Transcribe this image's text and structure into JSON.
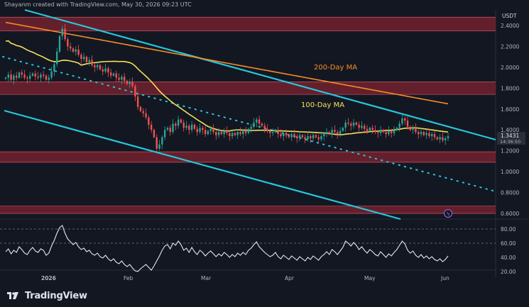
{
  "header": {
    "credit": "Shayanm created with TradingView.com, May 30, 2026 09:23 UTC"
  },
  "logo": {
    "text": "TradingView"
  },
  "colors": {
    "background": "#131722",
    "up_candle": "#26a69a",
    "down_candle": "#ef5350",
    "zone": "#7a2230",
    "channel": "#26c6da",
    "ma100": "#f6e15c",
    "ma200": "#f58c26",
    "rsi": "#e8e8e8",
    "price_tag": "#2a2e39"
  },
  "chart_data": {
    "type": "candlestick",
    "price_axis": {
      "unit": "USDT",
      "ticks": [
        "2.4000",
        "2.2000",
        "2.0000",
        "1.8000",
        "1.6000",
        "1.4000",
        "1.2000",
        "1.0000",
        "0.8000",
        "0.6000"
      ],
      "range": [
        0.6,
        2.5
      ]
    },
    "time_axis": {
      "labels": [
        "2026",
        "Feb",
        "Mar",
        "Apr",
        "May",
        "Jun"
      ]
    },
    "price_label": {
      "value": "1.3431",
      "countdown": "14:36:50"
    },
    "annotations": [
      {
        "text": "200-Day MA",
        "color": "#f58c26"
      },
      {
        "text": "100-Day MA",
        "color": "#f6e15c"
      }
    ],
    "zones": [
      {
        "from": 2.35,
        "to": 2.48
      },
      {
        "from": 1.74,
        "to": 1.86
      },
      {
        "from": 1.09,
        "to": 1.19
      },
      {
        "from": 0.6,
        "to": 0.67
      }
    ],
    "close": [
      1.9,
      1.93,
      1.88,
      1.92,
      1.9,
      1.95,
      1.93,
      1.9,
      1.89,
      1.92,
      1.94,
      1.91,
      1.9,
      1.93,
      1.92,
      1.88,
      1.9,
      1.96,
      2.03,
      2.15,
      2.3,
      2.37,
      2.27,
      2.2,
      2.18,
      2.15,
      2.17,
      2.12,
      2.08,
      2.1,
      2.05,
      2.07,
      2.02,
      2.0,
      2.02,
      1.98,
      1.96,
      1.99,
      1.95,
      1.92,
      1.94,
      1.9,
      1.88,
      1.91,
      1.87,
      1.84,
      1.86,
      1.82,
      1.72,
      1.62,
      1.58,
      1.56,
      1.52,
      1.45,
      1.4,
      1.33,
      1.22,
      1.26,
      1.33,
      1.4,
      1.42,
      1.38,
      1.46,
      1.44,
      1.5,
      1.47,
      1.42,
      1.44,
      1.4,
      1.45,
      1.41,
      1.38,
      1.42,
      1.4,
      1.36,
      1.39,
      1.41,
      1.38,
      1.35,
      1.38,
      1.36,
      1.39,
      1.37,
      1.34,
      1.37,
      1.35,
      1.38,
      1.36,
      1.39,
      1.37,
      1.41,
      1.43,
      1.47,
      1.5,
      1.46,
      1.44,
      1.41,
      1.39,
      1.37,
      1.38,
      1.4,
      1.36,
      1.34,
      1.37,
      1.35,
      1.33,
      1.36,
      1.34,
      1.32,
      1.35,
      1.33,
      1.31,
      1.34,
      1.32,
      1.35,
      1.33,
      1.31,
      1.34,
      1.36,
      1.38,
      1.36,
      1.4,
      1.38,
      1.36,
      1.39,
      1.42,
      1.47,
      1.46,
      1.44,
      1.47,
      1.45,
      1.42,
      1.44,
      1.41,
      1.39,
      1.42,
      1.4,
      1.38,
      1.37,
      1.4,
      1.38,
      1.36,
      1.39,
      1.37,
      1.4,
      1.42,
      1.46,
      1.51,
      1.49,
      1.43,
      1.4,
      1.42,
      1.38,
      1.36,
      1.38,
      1.35,
      1.37,
      1.34,
      1.36,
      1.33,
      1.31,
      1.33,
      1.3,
      1.32,
      1.34
    ],
    "rsi": {
      "levels": [
        "80.00",
        "60.00",
        "40.00",
        "20.00"
      ],
      "range": [
        10,
        90
      ],
      "values": [
        48,
        52,
        45,
        50,
        47,
        55,
        51,
        46,
        44,
        50,
        54,
        49,
        47,
        52,
        50,
        43,
        46,
        56,
        64,
        74,
        82,
        85,
        74,
        66,
        62,
        58,
        61,
        55,
        51,
        53,
        48,
        50,
        45,
        43,
        46,
        41,
        39,
        43,
        38,
        35,
        38,
        33,
        31,
        35,
        30,
        27,
        30,
        25,
        21,
        20,
        24,
        27,
        30,
        26,
        22,
        28,
        35,
        42,
        50,
        56,
        58,
        52,
        60,
        57,
        63,
        58,
        50,
        53,
        47,
        54,
        48,
        44,
        50,
        47,
        42,
        46,
        49,
        45,
        41,
        45,
        42,
        47,
        44,
        40,
        44,
        41,
        46,
        43,
        47,
        44,
        50,
        53,
        58,
        62,
        55,
        51,
        47,
        44,
        41,
        43,
        47,
        41,
        38,
        43,
        40,
        37,
        42,
        39,
        36,
        41,
        38,
        35,
        40,
        37,
        42,
        39,
        36,
        41,
        44,
        48,
        44,
        51,
        48,
        44,
        49,
        54,
        63,
        60,
        56,
        61,
        57,
        51,
        55,
        50,
        46,
        51,
        48,
        44,
        42,
        48,
        44,
        40,
        45,
        42,
        47,
        51,
        57,
        63,
        59,
        50,
        46,
        49,
        43,
        40,
        44,
        39,
        42,
        38,
        41,
        37,
        35,
        38,
        34,
        37,
        42
      ]
    }
  }
}
